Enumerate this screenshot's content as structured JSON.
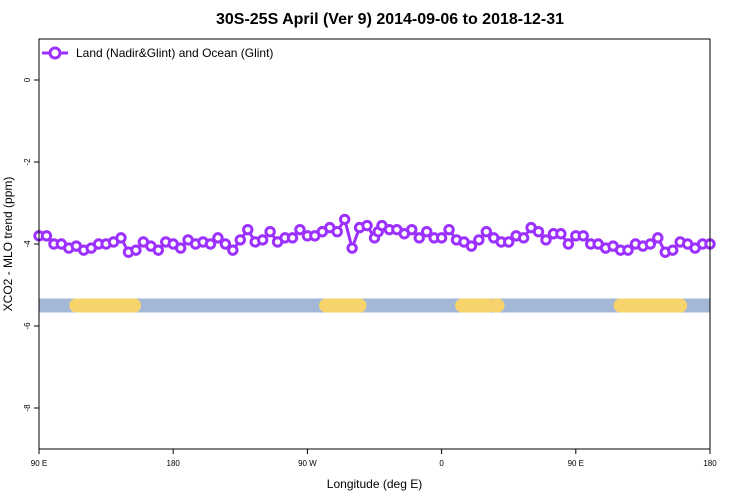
{
  "chart_data": {
    "type": "line",
    "title": "30S-25S April (Ver 9)   2014-09-06 to 2018-12-31",
    "xlabel": "Longitude (deg E)",
    "ylabel": "XCO2 - MLO trend (ppm)",
    "xlim": [
      90,
      450
    ],
    "ylim": [
      -9,
      1
    ],
    "x_ticks": [
      {
        "value": 90,
        "label": "90 E"
      },
      {
        "value": 162,
        "label": "180"
      },
      {
        "value": 234,
        "label": "90 W"
      },
      {
        "value": 306,
        "label": "0"
      },
      {
        "value": 378,
        "label": "90 E"
      },
      {
        "value": 450,
        "label": "180"
      }
    ],
    "y_ticks": [
      {
        "value": 0,
        "label": "0"
      },
      {
        "value": -2,
        "label": "-2"
      },
      {
        "value": -4,
        "label": "-4"
      },
      {
        "value": -6,
        "label": "-6"
      },
      {
        "value": -8,
        "label": "-8"
      }
    ],
    "legend": {
      "position": "top-left",
      "label": "Land (Nadir&Glint) and Ocean (Glint)"
    },
    "series": [
      {
        "name": "Land (Nadir&Glint) and Ocean (Glint)",
        "color": "#9b30ff",
        "x": [
          90,
          94,
          98,
          102,
          106,
          110,
          114,
          118,
          122,
          126,
          130,
          134,
          138,
          142,
          146,
          150,
          154,
          158,
          162,
          166,
          170,
          174,
          178,
          182,
          186,
          190,
          194,
          198,
          202,
          206,
          210,
          214,
          218,
          222,
          226,
          230,
          234,
          238,
          242,
          246,
          250,
          254,
          258,
          262,
          266,
          270,
          272,
          274,
          278,
          282,
          286,
          290,
          294,
          298,
          302,
          306,
          310,
          314,
          318,
          322,
          326,
          330,
          334,
          338,
          342,
          346,
          350,
          354,
          358,
          362,
          366,
          370,
          374,
          378,
          382,
          386,
          390,
          394,
          398,
          402,
          406,
          410,
          414,
          418,
          422,
          426,
          430,
          434,
          438,
          442,
          446,
          450
        ],
        "values": [
          -3.8,
          -3.8,
          -4.0,
          -4.0,
          -4.1,
          -4.05,
          -4.15,
          -4.1,
          -4.0,
          -4.0,
          -3.95,
          -3.85,
          -4.2,
          -4.15,
          -3.95,
          -4.05,
          -4.15,
          -3.95,
          -4.0,
          -4.1,
          -3.9,
          -4.0,
          -3.95,
          -4.0,
          -3.85,
          -4.0,
          -4.15,
          -3.9,
          -3.65,
          -3.95,
          -3.9,
          -3.7,
          -3.95,
          -3.85,
          -3.85,
          -3.65,
          -3.8,
          -3.8,
          -3.7,
          -3.6,
          -3.7,
          -3.4,
          -4.1,
          -3.6,
          -3.55,
          -3.85,
          -3.7,
          -3.55,
          -3.65,
          -3.65,
          -3.75,
          -3.65,
          -3.85,
          -3.7,
          -3.85,
          -3.85,
          -3.65,
          -3.9,
          -3.95,
          -4.05,
          -3.9,
          -3.7,
          -3.85,
          -3.95,
          -3.95,
          -3.8,
          -3.85,
          -3.6,
          -3.7,
          -3.9,
          -3.75,
          -3.75,
          -4.0,
          -3.8,
          -3.8,
          -4.0,
          -4.0,
          -4.1,
          -4.05,
          -4.15,
          -4.15,
          -4.0,
          -4.05,
          -4.0,
          -3.85,
          -4.2,
          -4.15,
          -3.95,
          -4.0,
          -4.1,
          -4.0,
          -4.0
        ]
      }
    ],
    "surface_bar": {
      "y": -5.5,
      "ocean_color": "#a3b8d6",
      "land_color": "#f6d46b",
      "land_segments": [
        [
          110,
          141
        ],
        [
          244,
          262
        ],
        [
          317,
          331
        ],
        [
          335,
          336
        ],
        [
          402,
          434
        ]
      ]
    }
  }
}
